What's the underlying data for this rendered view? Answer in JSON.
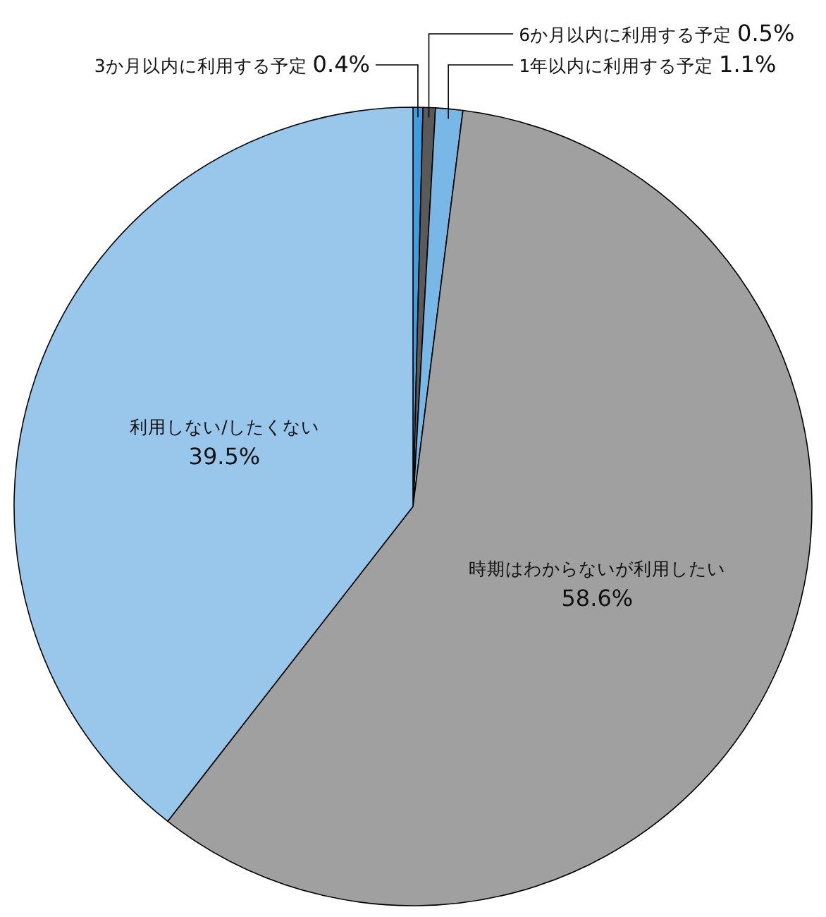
{
  "chart_data": {
    "type": "pie",
    "categories": [
      "3か月以内に利用する予定",
      "6か月以内に利用する予定",
      "1年以内に利用する予定",
      "時期はわからないが利用したい",
      "利用しない/したくない"
    ],
    "values": [
      0.4,
      0.5,
      1.1,
      58.6,
      39.5
    ],
    "colors": [
      "#3f9ddf",
      "#5a5a5a",
      "#78b7e6",
      "#a0a0a0",
      "#98c7eb"
    ],
    "value_labels": [
      "0.4%",
      "0.5%",
      "1.1%",
      "58.6%",
      "39.5%"
    ]
  }
}
